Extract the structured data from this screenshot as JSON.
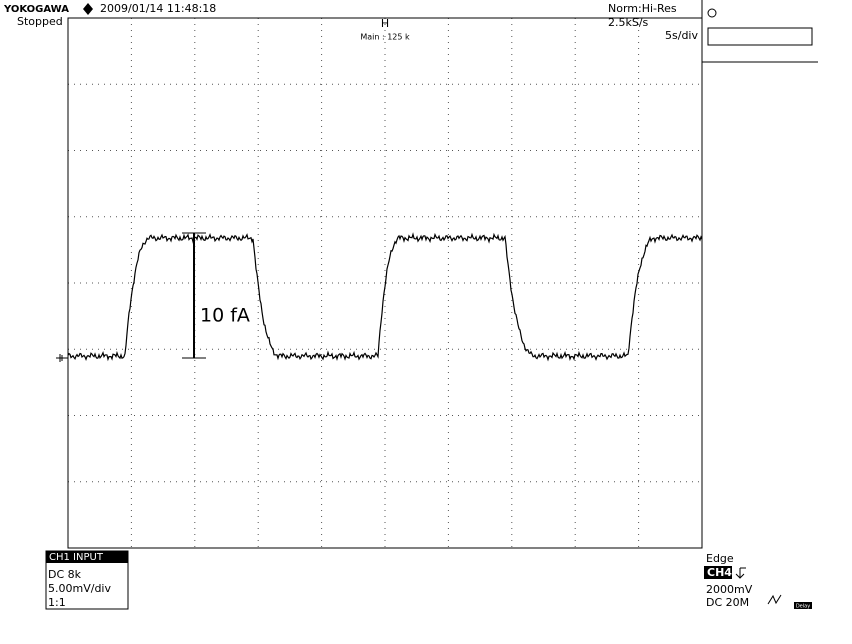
{
  "header": {
    "brand": "YOKOGAWA",
    "timestamp": "2009/01/14 11:48:18",
    "status": "Stopped",
    "mode": "Norm:Hi-Res",
    "sample_rate": "2.5kS/s",
    "trigger_pos": "H",
    "record": "Main : 125 k",
    "timebase": "5s/div"
  },
  "annotation": "10 fA",
  "channel_box": {
    "title": "CH1 INPUT",
    "lines": [
      "DC 8k",
      "5.00mV/div",
      "1:1"
    ]
  },
  "trigger_box": {
    "type": "Edge",
    "source": "CH4",
    "level": "2000mV",
    "coupling": "DC 20M",
    "delay": "Delay"
  }
}
